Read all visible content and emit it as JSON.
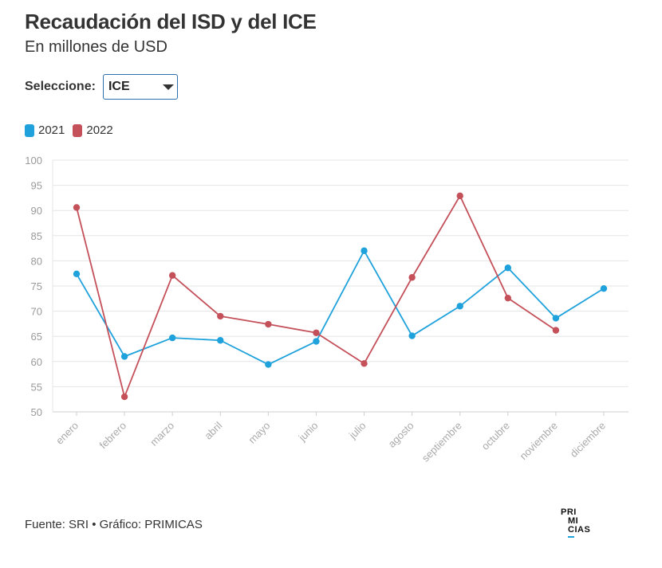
{
  "header": {
    "title": "Recaudación del ISD y del ICE",
    "subtitle": "En millones de USD"
  },
  "selector": {
    "label": "Seleccione:",
    "value": "ICE"
  },
  "footer": {
    "source": "Fuente: SRI • Gráfico: PRIMICAS"
  },
  "logo": {
    "line1": "PRI",
    "line2": "MI",
    "line3": "CIAS"
  },
  "chart_data": {
    "type": "line",
    "title": "",
    "xlabel": "",
    "ylabel": "",
    "categories": [
      "enero",
      "febrero",
      "marzo",
      "abril",
      "mayo",
      "junio",
      "julio",
      "agosto",
      "septiembre",
      "octubre",
      "noviembre",
      "diciembre"
    ],
    "ylim": [
      50,
      100
    ],
    "yticks": [
      50,
      55,
      60,
      65,
      70,
      75,
      80,
      85,
      90,
      95,
      100
    ],
    "grid": true,
    "legend_position": "top-left",
    "series": [
      {
        "name": "2021",
        "color": "#1fa2dc",
        "values": [
          77.4,
          61.0,
          64.7,
          64.2,
          59.4,
          64.0,
          82.0,
          65.1,
          71.0,
          78.6,
          68.6,
          74.5
        ]
      },
      {
        "name": "2022",
        "color": "#c4505a",
        "values": [
          90.6,
          53.0,
          77.1,
          69.0,
          67.4,
          65.7,
          59.6,
          76.7,
          92.9,
          72.6,
          66.2,
          null
        ]
      }
    ]
  }
}
